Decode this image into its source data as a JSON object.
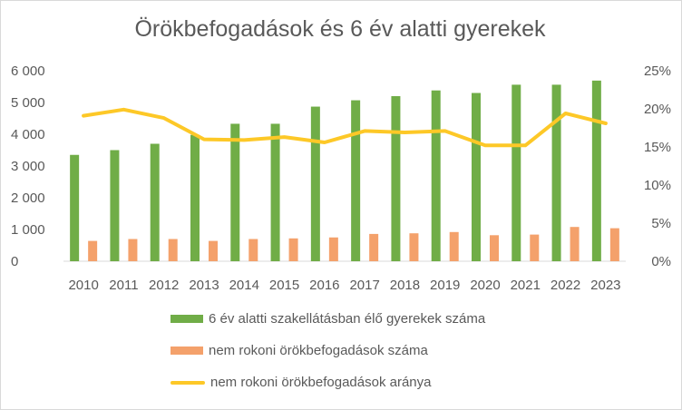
{
  "chart_data": {
    "type": "bar",
    "title": "Örökbefogadások  és 6 év alatti gyerekek",
    "categories": [
      "2010",
      "2011",
      "2012",
      "2013",
      "2014",
      "2015",
      "2016",
      "2017",
      "2018",
      "2019",
      "2020",
      "2021",
      "2022",
      "2023"
    ],
    "series": [
      {
        "name": "6 év alatti szakellátásban élő gyerekek száma",
        "kind": "bar",
        "axis": "left",
        "color": "#70ad47",
        "values": [
          3350,
          3500,
          3700,
          3980,
          4330,
          4330,
          4870,
          5070,
          5200,
          5380,
          5300,
          5560,
          5560,
          5690
        ]
      },
      {
        "name": "nem rokoni örökbefogadások száma",
        "kind": "bar",
        "axis": "left",
        "color": "#f4a16b",
        "values": [
          640,
          700,
          700,
          640,
          700,
          720,
          750,
          860,
          880,
          920,
          820,
          840,
          1080,
          1040
        ]
      },
      {
        "name": "nem rokoni örökbefogadások aránya",
        "kind": "line",
        "axis": "right",
        "color": "#fdc827",
        "values": [
          19.1,
          19.9,
          18.8,
          16.0,
          15.9,
          16.3,
          15.6,
          17.1,
          16.9,
          17.1,
          15.2,
          15.2,
          19.4,
          18.1
        ]
      }
    ],
    "left_axis": {
      "ylim": [
        0,
        6000
      ],
      "ticks": [
        "0",
        "1 000",
        "2 000",
        "3 000",
        "4 000",
        "5 000",
        "6 000"
      ]
    },
    "right_axis": {
      "ylim": [
        0,
        25
      ],
      "ticks": [
        "0%",
        "5%",
        "10%",
        "15%",
        "20%",
        "25%"
      ]
    },
    "grid": false,
    "legend_position": "bottom"
  }
}
